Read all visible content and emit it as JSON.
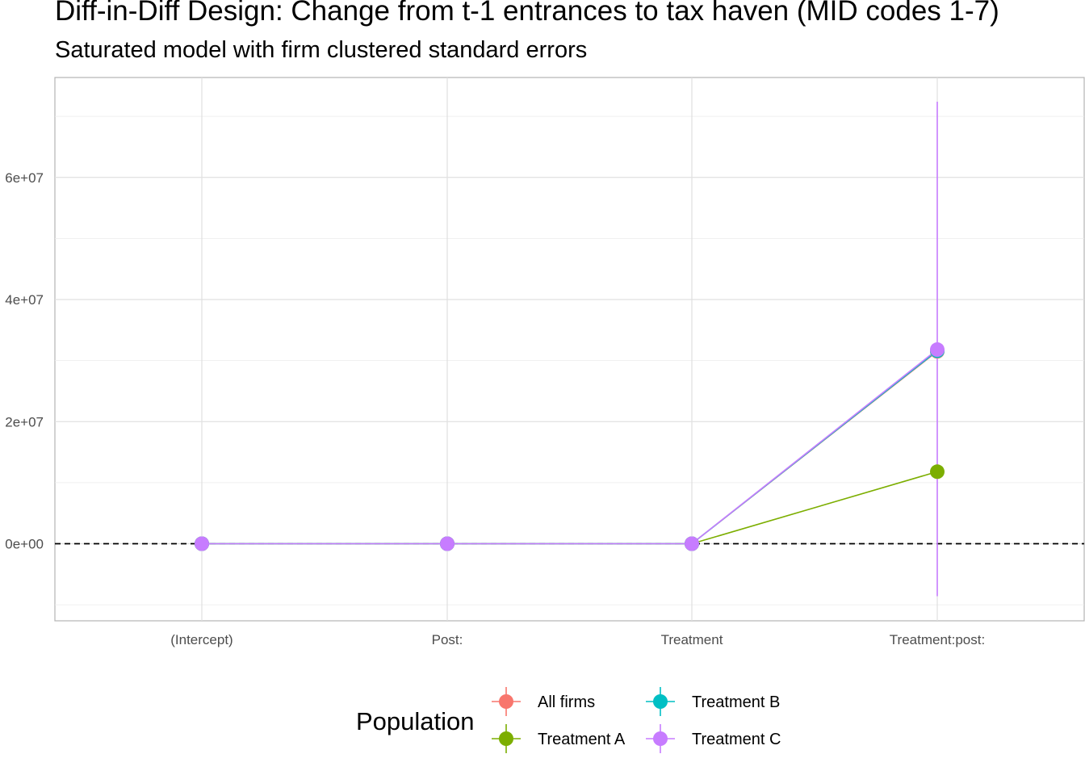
{
  "chart_data": {
    "type": "line",
    "title": "Diff-in-Diff Design: Change from t-1 entrances to tax haven (MID codes 1-7)",
    "subtitle": "Saturated model with firm clustered standard errors",
    "xlabel": "",
    "ylabel": "",
    "categories": [
      "(Intercept)",
      "Post:",
      "Treatment",
      "Treatment:post:"
    ],
    "y_ticks": [
      0,
      20000000,
      40000000,
      60000000
    ],
    "y_tick_labels": [
      "0e+00",
      "2e+07",
      "4e+07",
      "6e+07"
    ],
    "ylim": [
      -12500000,
      76000000
    ],
    "grid": true,
    "reference_line": 0,
    "legend": {
      "title": "Population",
      "placement": "bottom",
      "entries": [
        "All firms",
        "Treatment B",
        "Treatment A",
        "Treatment C"
      ]
    },
    "series": [
      {
        "name": "All firms",
        "color": "#F8766D",
        "values": [
          0,
          0,
          0,
          31500000
        ],
        "ci_low": [
          0,
          0,
          0,
          null
        ],
        "ci_high": [
          0,
          0,
          0,
          null
        ]
      },
      {
        "name": "Treatment A",
        "color": "#7CAE00",
        "values": [
          0,
          0,
          0,
          11800000
        ],
        "ci_low": [
          0,
          0,
          0,
          null
        ],
        "ci_high": [
          0,
          0,
          0,
          null
        ]
      },
      {
        "name": "Treatment B",
        "color": "#00BFC4",
        "values": [
          0,
          0,
          0,
          31600000
        ],
        "ci_low": [
          0,
          0,
          0,
          null
        ],
        "ci_high": [
          0,
          0,
          0,
          null
        ]
      },
      {
        "name": "Treatment C",
        "color": "#C77CFF",
        "values": [
          0,
          0,
          0,
          31800000
        ],
        "ci_low": [
          0,
          0,
          0,
          -8600000
        ],
        "ci_high": [
          0,
          0,
          0,
          72400000
        ]
      }
    ]
  }
}
